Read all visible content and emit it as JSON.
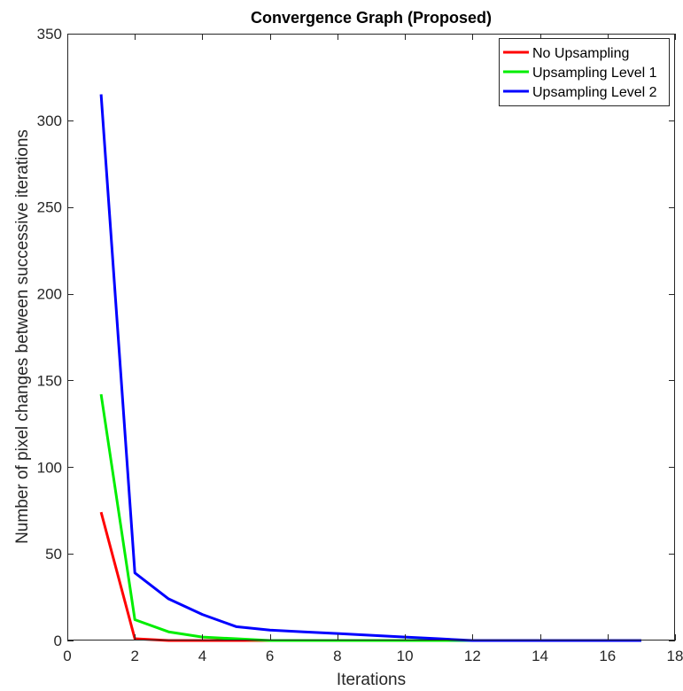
{
  "chart_data": {
    "type": "line",
    "title": "Convergence Graph (Proposed)",
    "xlabel": "Iterations",
    "ylabel": "Number of pixel changes between successive iterations",
    "xlim": [
      0,
      18
    ],
    "ylim": [
      0,
      350
    ],
    "xticks": [
      0,
      2,
      4,
      6,
      8,
      10,
      12,
      14,
      16,
      18
    ],
    "yticks": [
      0,
      50,
      100,
      150,
      200,
      250,
      300,
      350
    ],
    "grid": false,
    "legend_position": "top-right",
    "series": [
      {
        "name": "No Upsampling",
        "color": "#ff0000",
        "x": [
          1,
          2,
          3,
          4,
          5,
          6,
          7,
          8,
          9,
          10,
          11,
          12,
          13,
          14,
          15,
          16,
          17
        ],
        "y": [
          74,
          1,
          0,
          0,
          0,
          0,
          0,
          0,
          0,
          0,
          0,
          0,
          0,
          0,
          0,
          0,
          0
        ]
      },
      {
        "name": "Upsampling Level 1",
        "color": "#00ee00",
        "x": [
          1,
          2,
          3,
          4,
          5,
          6,
          7,
          8,
          9,
          10,
          11,
          12,
          13,
          14,
          15,
          16,
          17
        ],
        "y": [
          142,
          12,
          5,
          2,
          1,
          0,
          0,
          0,
          0,
          0,
          0,
          0,
          0,
          0,
          0,
          0,
          0
        ]
      },
      {
        "name": "Upsampling Level 2",
        "color": "#0000ff",
        "x": [
          1,
          2,
          3,
          4,
          5,
          6,
          7,
          8,
          9,
          10,
          11,
          12,
          13,
          14,
          15,
          16,
          17
        ],
        "y": [
          315,
          39,
          24,
          15,
          8,
          6,
          5,
          4,
          3,
          2,
          1,
          0,
          0,
          0,
          0,
          0,
          0
        ]
      }
    ]
  }
}
